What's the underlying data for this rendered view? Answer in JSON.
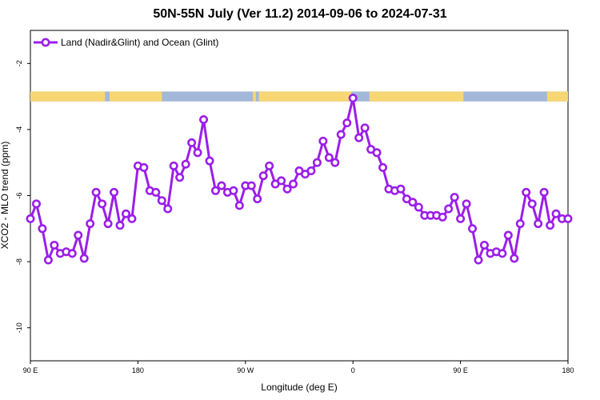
{
  "chart_data": {
    "type": "line",
    "title": "50N-55N July (Ver 11.2)   2014-09-06 to 2024-07-31",
    "xlabel": "Longitude (deg E)",
    "ylabel": "XCO2 - MLO trend (ppm)",
    "x_tick_labels": [
      "90 E",
      "180",
      "90 W",
      "0",
      "90 E",
      "180"
    ],
    "y_ticks": [
      -2,
      -4,
      -6,
      -8,
      -10
    ],
    "xlim": [
      90,
      450
    ],
    "ylim": [
      -11,
      -1
    ],
    "grid": false,
    "legend_position": "top-left",
    "colors": {
      "series": "#9b1fe8",
      "land": "#f7d774",
      "ocean": "#a3b8d8"
    },
    "land_ocean_band_y": [
      -2.85,
      -3.15
    ],
    "series": [
      {
        "name": "Land (Nadir&Glint) and Ocean (Glint)",
        "x": [
          90,
          94,
          98,
          102,
          106,
          110,
          114,
          118,
          122,
          126,
          130,
          134,
          138,
          142,
          146,
          150,
          154,
          158,
          162,
          166,
          170,
          174,
          178,
          182,
          186,
          190,
          194,
          198,
          202,
          206,
          210,
          214,
          218,
          222,
          226,
          230,
          234,
          238,
          242,
          246,
          250,
          254,
          258,
          262,
          266,
          270,
          274,
          278,
          282,
          286,
          290,
          294,
          298,
          302,
          306,
          310,
          314,
          318,
          322,
          326,
          330,
          334,
          338,
          342,
          346,
          350,
          354,
          358,
          362,
          366,
          370,
          374,
          378,
          382,
          386,
          390,
          394,
          398,
          402,
          406,
          410,
          414,
          418,
          422,
          426,
          430,
          434,
          438,
          442,
          446,
          450
        ],
        "y": [
          -6.7,
          -6.25,
          -7.0,
          -7.95,
          -7.5,
          -7.75,
          -7.7,
          -7.75,
          -7.2,
          -7.9,
          -6.85,
          -5.9,
          -6.25,
          -6.85,
          -5.9,
          -6.9,
          -6.55,
          -6.7,
          -5.1,
          -5.15,
          -5.85,
          -5.9,
          -6.15,
          -6.4,
          -5.1,
          -5.45,
          -5.05,
          -4.4,
          -4.7,
          -3.7,
          -4.95,
          -5.85,
          -5.7,
          -5.9,
          -5.85,
          -6.3,
          -5.7,
          -5.7,
          -6.1,
          -5.4,
          -5.1,
          -5.65,
          -5.55,
          -5.8,
          -5.65,
          -5.25,
          -5.35,
          -5.25,
          -5.0,
          -4.35,
          -4.85,
          -5.0,
          -4.15,
          -3.8,
          -3.05,
          -4.25,
          -3.95,
          -4.6,
          -4.7,
          -5.15,
          -5.8,
          -5.85,
          -5.8,
          -6.1,
          -6.2,
          -6.35,
          -6.6,
          -6.6,
          -6.6,
          -6.65,
          -6.4,
          -6.05,
          -6.7,
          -6.25,
          -7.0,
          -7.95,
          -7.5,
          -7.75,
          -7.7,
          -7.75,
          -7.2,
          -7.9,
          -6.85,
          -5.9,
          -6.25,
          -6.85,
          -5.9,
          -6.9,
          -6.55,
          -6.7,
          -6.7
        ]
      }
    ]
  }
}
